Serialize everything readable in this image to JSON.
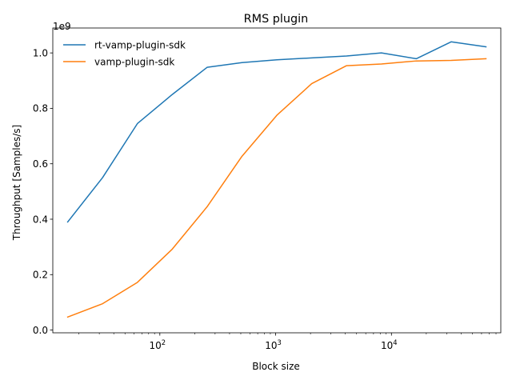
{
  "chart_data": {
    "type": "line",
    "title": "RMS plugin",
    "xlabel": "Block size",
    "ylabel": "Throughput [Samples/s]",
    "x_scale": "log",
    "y_offset_label": "1e9",
    "xlim": [
      11.9,
      88000
    ],
    "ylim": [
      -0.0099,
      1.0899
    ],
    "x_ticks": [
      {
        "value": 100,
        "base": "10",
        "exp": "2"
      },
      {
        "value": 1000,
        "base": "10",
        "exp": "3"
      },
      {
        "value": 10000,
        "base": "10",
        "exp": "4"
      }
    ],
    "y_ticks": [
      {
        "value": 0.0,
        "label": "0.0"
      },
      {
        "value": 0.2,
        "label": "0.2"
      },
      {
        "value": 0.4,
        "label": "0.4"
      },
      {
        "value": 0.6,
        "label": "0.6"
      },
      {
        "value": 0.8,
        "label": "0.8"
      },
      {
        "value": 1.0,
        "label": "1.0"
      }
    ],
    "x": [
      16,
      32,
      64,
      128,
      256,
      512,
      1024,
      2048,
      4096,
      8192,
      16384,
      32768,
      65536
    ],
    "legend_position": "top-left",
    "series": [
      {
        "name": "rt-vamp-plugin-sdk",
        "color": "#1f77b4",
        "values": [
          0.39,
          0.55,
          0.745,
          0.85,
          0.948,
          0.965,
          0.975,
          0.982,
          0.989,
          1.0,
          0.979,
          1.04,
          1.022
        ]
      },
      {
        "name": "vamp-plugin-sdk",
        "color": "#ff7f0e",
        "values": [
          0.047,
          0.095,
          0.172,
          0.292,
          0.445,
          0.627,
          0.775,
          0.889,
          0.954,
          0.96,
          0.971,
          0.973,
          0.979
        ]
      }
    ]
  }
}
